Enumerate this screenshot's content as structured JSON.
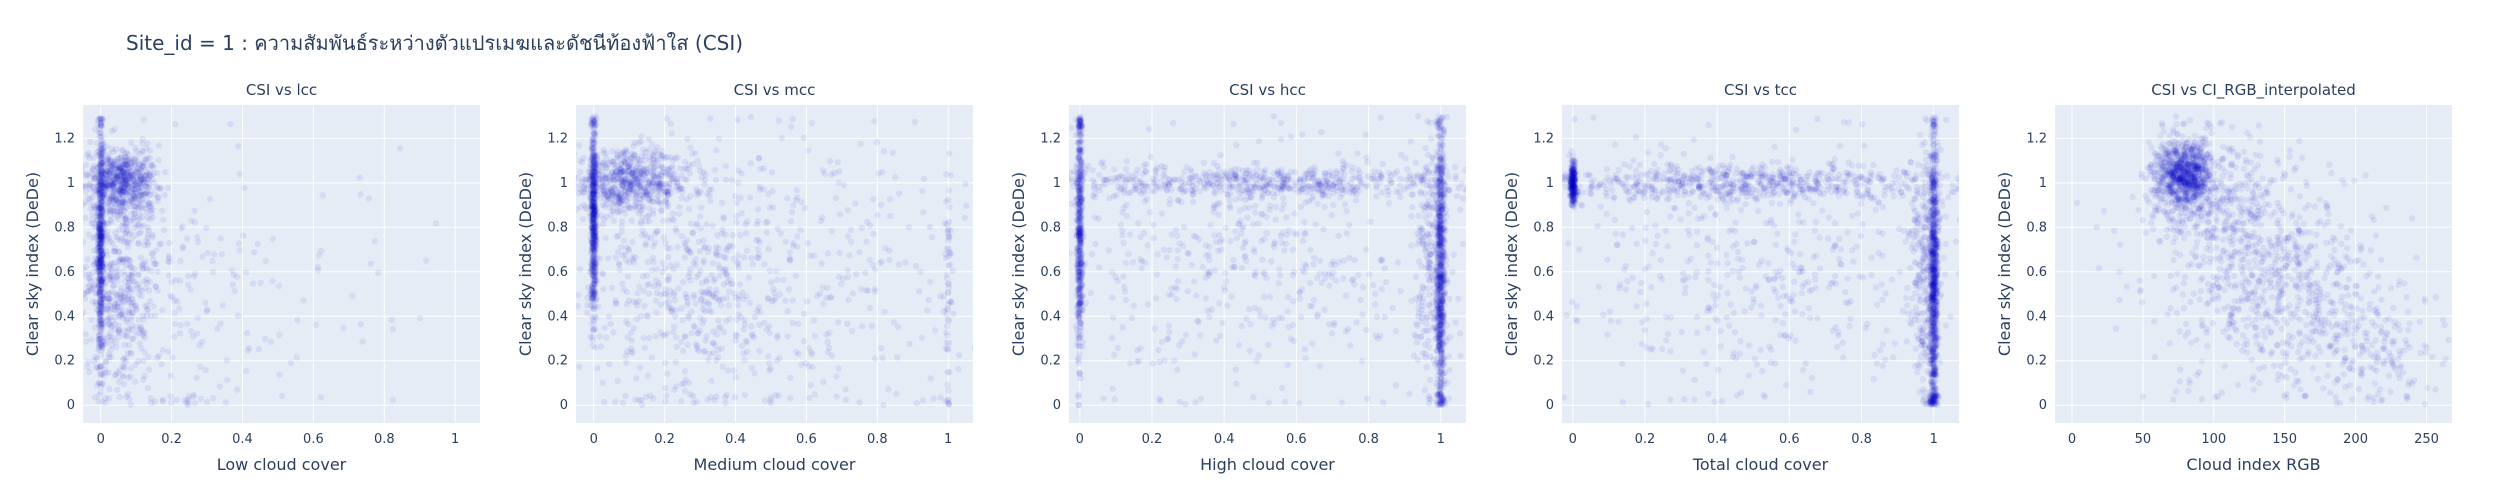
{
  "figure": {
    "title": "Site_id = 1 : ความสัมพันธ์ระหว่างตัวแปรเมฆและดัชนีท้องฟ้าใส (CSI)"
  },
  "style": {
    "plot_bg": "#e5ecf6",
    "grid": "#ffffff",
    "marker": "#0000cc",
    "text": "#2a3f5f"
  },
  "chart_data": [
    {
      "type": "scatter",
      "title": "CSI vs lcc",
      "xlabel": "Low cloud cover",
      "ylabel": "Clear sky index (DeDe)",
      "xlim": [
        -0.05,
        1.07
      ],
      "ylim": [
        -0.08,
        1.35
      ],
      "xticks": [
        0,
        0.2,
        0.4,
        0.6,
        0.8,
        1
      ],
      "xtick_labels": [
        "0",
        "0.2",
        "0.4",
        "0.6",
        "0.8",
        "1"
      ],
      "yticks": [
        0,
        0.2,
        0.4,
        0.6,
        0.8,
        1,
        1.2
      ],
      "ytick_labels": [
        "0",
        "0.2",
        "0.4",
        "0.6",
        "0.8",
        "1",
        "1.2"
      ],
      "clusters": [
        {
          "x": 0.0,
          "y": 0.75,
          "sx": 0.004,
          "sy": 0.28,
          "n": 520
        },
        {
          "x": 0.06,
          "y": 1.0,
          "sx": 0.05,
          "sy": 0.08,
          "n": 700
        },
        {
          "x": 0.05,
          "y": 0.5,
          "sx": 0.06,
          "sy": 0.2,
          "n": 450
        },
        {
          "x": 0.2,
          "y": 0.4,
          "sx": 0.12,
          "sy": 0.3,
          "n": 130
        },
        {
          "x": 0.5,
          "y": 0.5,
          "sx": 0.25,
          "sy": 0.4,
          "n": 70
        }
      ]
    },
    {
      "type": "scatter",
      "title": "CSI vs mcc",
      "xlabel": "Medium cloud cover",
      "ylabel": "Clear sky index (DeDe)",
      "xlim": [
        -0.05,
        1.07
      ],
      "ylim": [
        -0.08,
        1.35
      ],
      "xticks": [
        0,
        0.2,
        0.4,
        0.6,
        0.8,
        1
      ],
      "xtick_labels": [
        "0",
        "0.2",
        "0.4",
        "0.6",
        "0.8",
        "1"
      ],
      "yticks": [
        0,
        0.2,
        0.4,
        0.6,
        0.8,
        1,
        1.2
      ],
      "ytick_labels": [
        "0",
        "0.2",
        "0.4",
        "0.6",
        "0.8",
        "1",
        "1.2"
      ],
      "clusters": [
        {
          "x": 0.0,
          "y": 0.85,
          "sx": 0.004,
          "sy": 0.22,
          "n": 550
        },
        {
          "x": 0.1,
          "y": 1.0,
          "sx": 0.09,
          "sy": 0.07,
          "n": 650
        },
        {
          "x": 0.25,
          "y": 0.55,
          "sx": 0.18,
          "sy": 0.28,
          "n": 500
        },
        {
          "x": 0.6,
          "y": 0.55,
          "sx": 0.25,
          "sy": 0.35,
          "n": 300
        },
        {
          "x": 1.0,
          "y": 0.5,
          "sx": 0.004,
          "sy": 0.3,
          "n": 60
        }
      ]
    },
    {
      "type": "scatter",
      "title": "CSI vs hcc",
      "xlabel": "High cloud cover",
      "ylabel": "Clear sky index (DeDe)",
      "xlim": [
        -0.03,
        1.07
      ],
      "ylim": [
        -0.08,
        1.35
      ],
      "xticks": [
        0,
        0.2,
        0.4,
        0.6,
        0.8,
        1
      ],
      "xtick_labels": [
        "0",
        "0.2",
        "0.4",
        "0.6",
        "0.8",
        "1"
      ],
      "yticks": [
        0,
        0.2,
        0.4,
        0.6,
        0.8,
        1,
        1.2
      ],
      "ytick_labels": [
        "0",
        "0.2",
        "0.4",
        "0.6",
        "0.8",
        "1",
        "1.2"
      ],
      "clusters": [
        {
          "x": 0.0,
          "y": 0.8,
          "sx": 0.004,
          "sy": 0.3,
          "n": 500
        },
        {
          "x": 0.5,
          "y": 1.0,
          "sx": 0.3,
          "sy": 0.04,
          "n": 600
        },
        {
          "x": 0.5,
          "y": 0.6,
          "sx": 0.3,
          "sy": 0.3,
          "n": 500
        },
        {
          "x": 1.0,
          "y": 0.6,
          "sx": 0.006,
          "sy": 0.35,
          "n": 750
        },
        {
          "x": 0.97,
          "y": 0.7,
          "sx": 0.02,
          "sy": 0.3,
          "n": 200
        }
      ]
    },
    {
      "type": "scatter",
      "title": "CSI vs tcc",
      "xlabel": "Total cloud cover",
      "ylabel": "Clear sky index (DeDe)",
      "xlim": [
        -0.03,
        1.07
      ],
      "ylim": [
        -0.08,
        1.35
      ],
      "xticks": [
        0,
        0.2,
        0.4,
        0.6,
        0.8,
        1
      ],
      "xtick_labels": [
        "0",
        "0.2",
        "0.4",
        "0.6",
        "0.8",
        "1"
      ],
      "yticks": [
        0,
        0.2,
        0.4,
        0.6,
        0.8,
        1,
        1.2
      ],
      "ytick_labels": [
        "0",
        "0.2",
        "0.4",
        "0.6",
        "0.8",
        "1",
        "1.2"
      ],
      "clusters": [
        {
          "x": 0.0,
          "y": 1.0,
          "sx": 0.004,
          "sy": 0.05,
          "n": 250
        },
        {
          "x": 0.5,
          "y": 1.0,
          "sx": 0.3,
          "sy": 0.04,
          "n": 650
        },
        {
          "x": 0.5,
          "y": 0.6,
          "sx": 0.3,
          "sy": 0.3,
          "n": 450
        },
        {
          "x": 1.0,
          "y": 0.55,
          "sx": 0.006,
          "sy": 0.35,
          "n": 900
        },
        {
          "x": 0.97,
          "y": 0.6,
          "sx": 0.02,
          "sy": 0.3,
          "n": 250
        }
      ]
    },
    {
      "type": "scatter",
      "title": "CSI vs CI_RGB_interpolated",
      "xlabel": "Cloud index RGB",
      "ylabel": "Clear sky index (DeDe)",
      "xlim": [
        -12,
        268
      ],
      "ylim": [
        -0.08,
        1.35
      ],
      "xticks": [
        0,
        50,
        100,
        150,
        200,
        250
      ],
      "xtick_labels": [
        "0",
        "50",
        "100",
        "150",
        "200",
        "250"
      ],
      "yticks": [
        0,
        0.2,
        0.4,
        0.6,
        0.8,
        1,
        1.2
      ],
      "ytick_labels": [
        "0",
        "0.2",
        "0.4",
        "0.6",
        "0.8",
        "1",
        "1.2"
      ],
      "clusters": [
        {
          "x": 78,
          "y": 1.03,
          "sx": 10,
          "sy": 0.08,
          "n": 900
        },
        {
          "x": 105,
          "y": 0.9,
          "sx": 25,
          "sy": 0.15,
          "n": 300
        },
        {
          "x": 150,
          "y": 0.55,
          "sx": 30,
          "sy": 0.2,
          "n": 450
        },
        {
          "x": 210,
          "y": 0.25,
          "sx": 25,
          "sy": 0.15,
          "n": 200
        },
        {
          "x": 110,
          "y": 0.6,
          "sx": 45,
          "sy": 0.3,
          "n": 200
        }
      ]
    }
  ]
}
